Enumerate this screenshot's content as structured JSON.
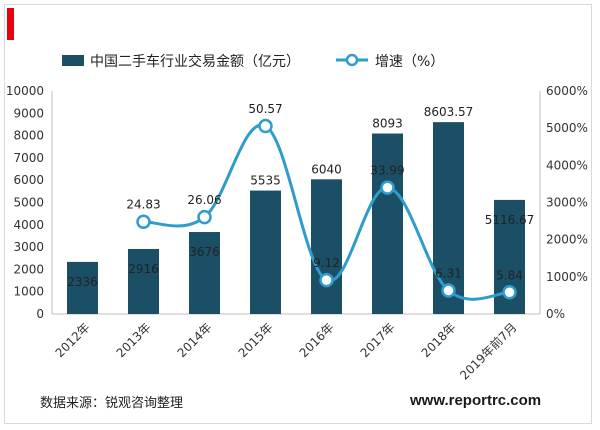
{
  "colors": {
    "bar": "#1b4f65",
    "line": "#2e9ccc",
    "accent": "#e60012"
  },
  "source": "数据来源：锐观咨询整理",
  "website": "www.reportrc.com",
  "chart_data": {
    "type": "bar",
    "categories": [
      "2012年",
      "2013年",
      "2014年",
      "2015年",
      "2016年",
      "2017年",
      "2018年",
      "2019年前7月"
    ],
    "series": [
      {
        "name": "中国二手车行业交易金额（亿元）",
        "type": "bar",
        "axis": "left",
        "values": [
          2336,
          2916,
          3676,
          5535,
          6040,
          8093,
          8603.57,
          5116.67
        ],
        "labels": [
          "2336",
          "2916",
          "3676",
          "5535",
          "6040",
          "8093",
          "8603.57",
          "5116.67"
        ]
      },
      {
        "name": "增速（%）",
        "type": "line",
        "axis": "right",
        "values": [
          null,
          24.83,
          26.06,
          50.57,
          9.12,
          33.99,
          6.31,
          5.84
        ],
        "labels": [
          "",
          "24.83",
          "26.06",
          "50.57",
          "9.12",
          "33.99",
          "6.31",
          "5.84"
        ]
      }
    ],
    "y_left": {
      "min": 0,
      "max": 10000,
      "ticks": [
        "0",
        "1000",
        "2000",
        "3000",
        "4000",
        "5000",
        "6000",
        "7000",
        "8000",
        "9000",
        "10000"
      ]
    },
    "y_right": {
      "min": 0,
      "max": 6000,
      "ticks": [
        "0%",
        "1000%",
        "2000%",
        "3000%",
        "4000%",
        "5000%",
        "6000%"
      ]
    },
    "legend_position": "top",
    "grid": false
  }
}
